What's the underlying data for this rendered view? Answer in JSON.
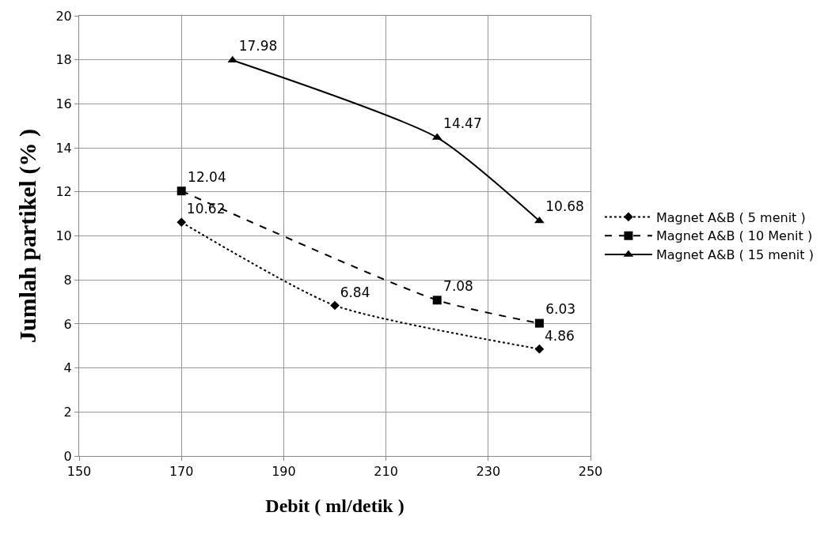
{
  "chart_data": {
    "type": "line",
    "xlabel": "Debit ( ml/detik )",
    "ylabel": "Jumlah partikel (% )",
    "xlim": [
      150,
      250
    ],
    "xticks": [
      150,
      170,
      190,
      210,
      230,
      250
    ],
    "ylim": [
      0,
      20
    ],
    "yticks": [
      0,
      2,
      4,
      6,
      8,
      10,
      12,
      14,
      16,
      18,
      20
    ],
    "grid": true,
    "legend": "right",
    "data_labels": true,
    "series": [
      {
        "name": "Magnet A&B ( 5 menit )",
        "color": "#000000",
        "x": [
          170,
          200,
          240
        ],
        "values": [
          10.62,
          6.84,
          4.86
        ],
        "marker": "diamond",
        "line_style": "dotted"
      },
      {
        "name": "Magnet A&B ( 10 Menit )",
        "color": "#000000",
        "x": [
          170,
          220,
          240
        ],
        "values": [
          12.04,
          7.08,
          6.03
        ],
        "marker": "square",
        "line_style": "dashed"
      },
      {
        "name": "Magnet A&B ( 15 menit )",
        "color": "#000000",
        "x": [
          180,
          220,
          240
        ],
        "values": [
          17.98,
          14.47,
          10.68
        ],
        "marker": "triangle",
        "line_style": "solid"
      }
    ]
  }
}
